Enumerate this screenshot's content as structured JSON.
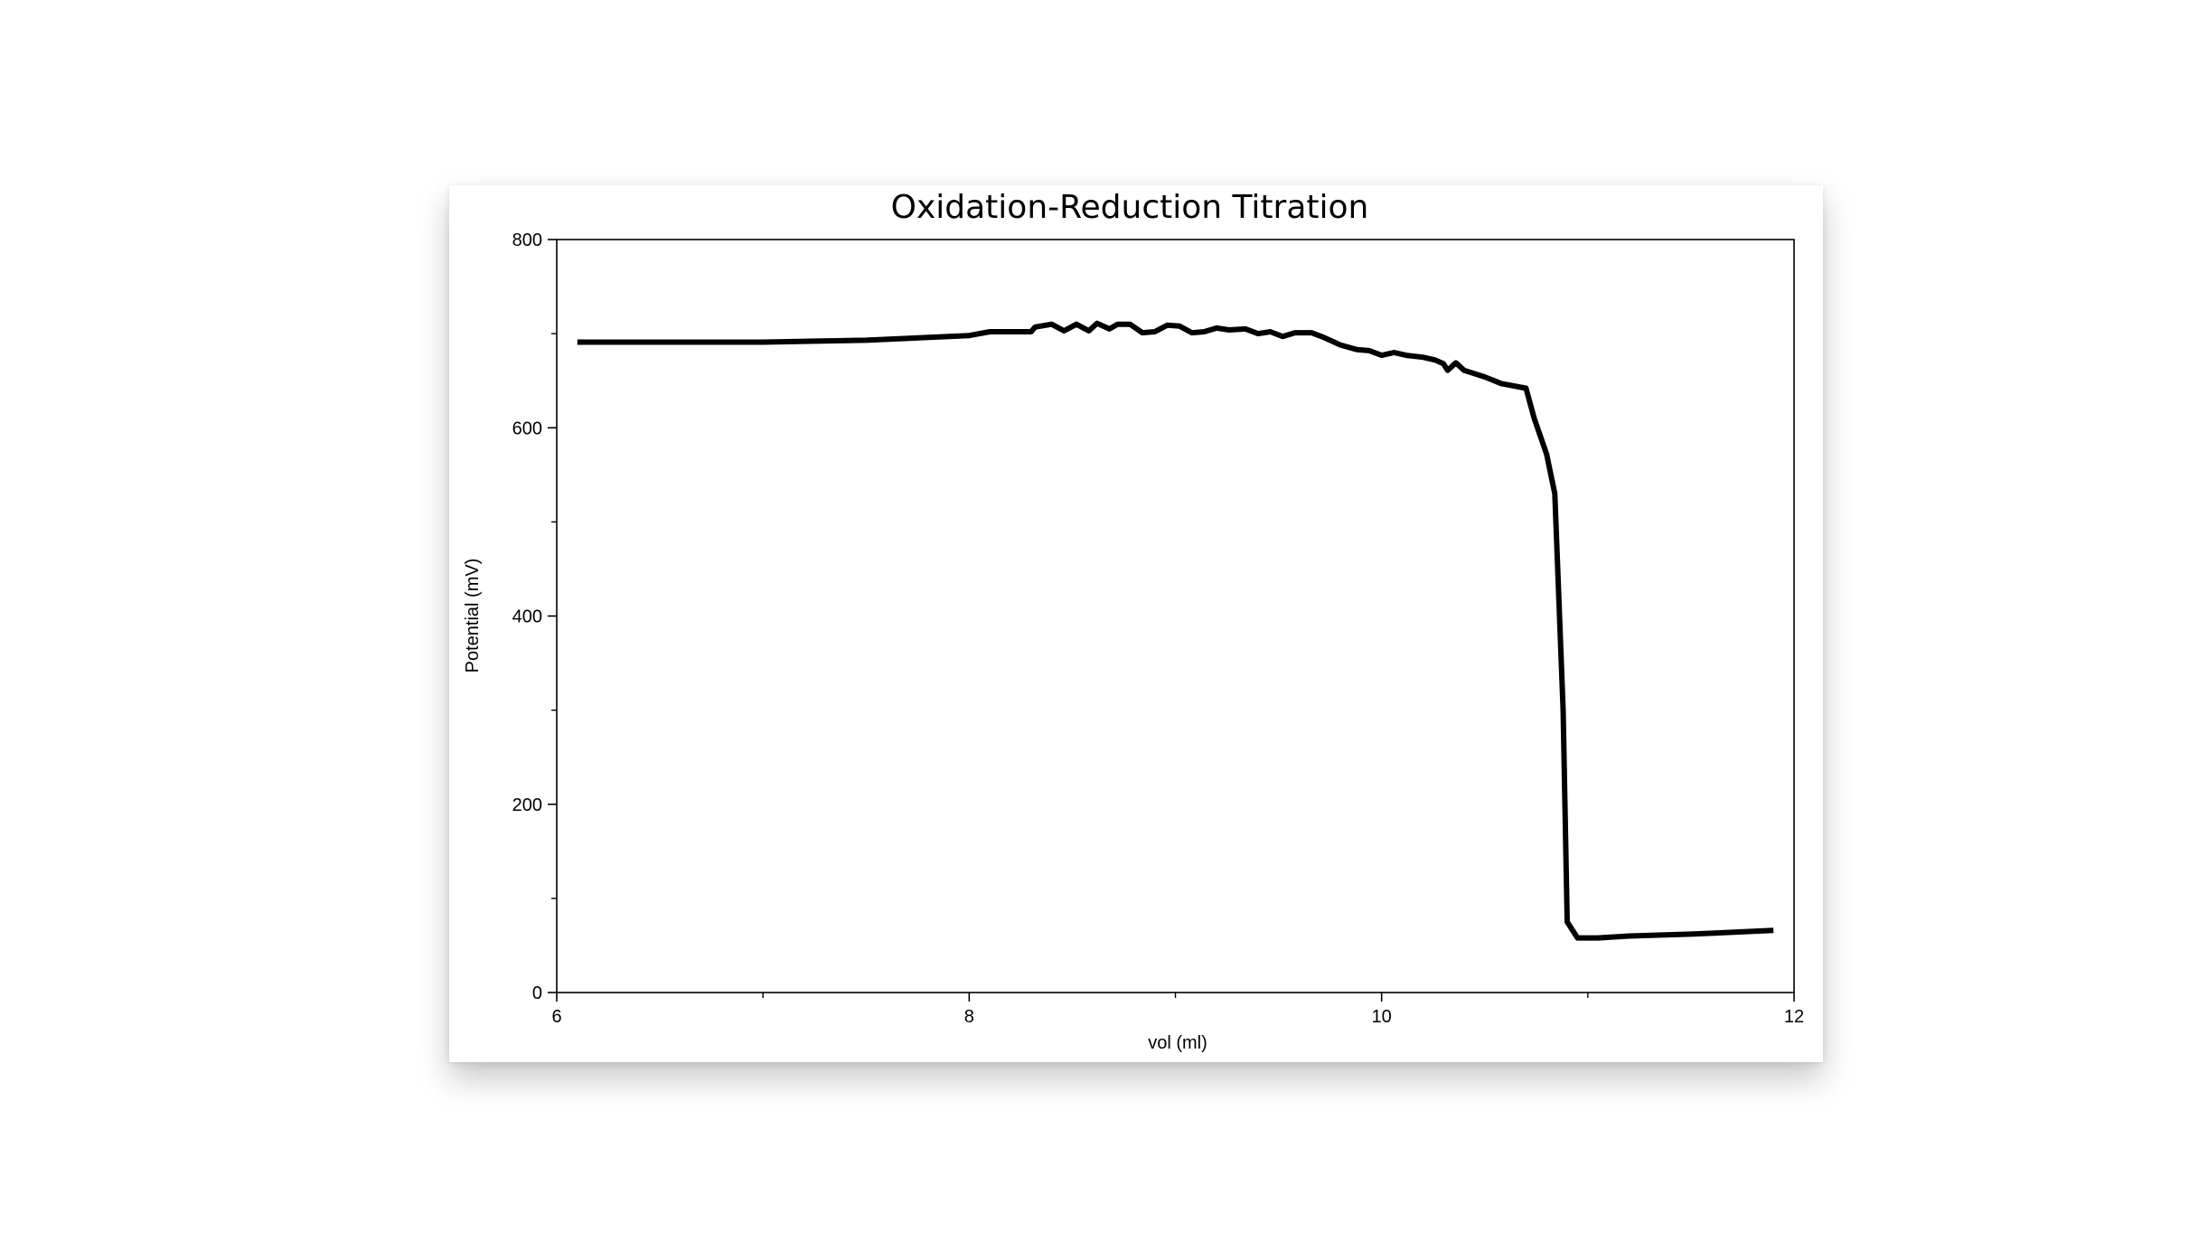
{
  "chart_data": {
    "type": "line",
    "title": "Oxidation-Reduction Titration",
    "xlabel": "vol (ml)",
    "ylabel": "Potential (mV)",
    "xlim": [
      6,
      12
    ],
    "ylim": [
      0,
      800
    ],
    "xticks": [
      "6",
      "8",
      "10",
      "12"
    ],
    "yticks": [
      "0",
      "200",
      "400",
      "600",
      "800"
    ],
    "grid": false,
    "series_color": "#000000",
    "series": [
      {
        "points": [
          [
            6.1,
            691
          ],
          [
            6.5,
            691
          ],
          [
            7.0,
            691
          ],
          [
            7.5,
            693
          ],
          [
            8.0,
            698
          ],
          [
            8.1,
            702
          ],
          [
            8.2,
            702
          ],
          [
            8.3,
            702
          ],
          [
            8.32,
            707
          ],
          [
            8.4,
            710
          ],
          [
            8.46,
            703
          ],
          [
            8.52,
            710
          ],
          [
            8.58,
            703
          ],
          [
            8.62,
            711
          ],
          [
            8.68,
            705
          ],
          [
            8.72,
            710
          ],
          [
            8.78,
            710
          ],
          [
            8.84,
            701
          ],
          [
            8.9,
            702
          ],
          [
            8.96,
            709
          ],
          [
            9.02,
            708
          ],
          [
            9.08,
            701
          ],
          [
            9.14,
            702
          ],
          [
            9.2,
            706
          ],
          [
            9.26,
            704
          ],
          [
            9.34,
            705
          ],
          [
            9.4,
            700
          ],
          [
            9.46,
            702
          ],
          [
            9.52,
            697
          ],
          [
            9.58,
            701
          ],
          [
            9.66,
            701
          ],
          [
            9.72,
            696
          ],
          [
            9.8,
            688
          ],
          [
            9.88,
            683
          ],
          [
            9.94,
            682
          ],
          [
            10.0,
            677
          ],
          [
            10.06,
            680
          ],
          [
            10.12,
            677
          ],
          [
            10.2,
            675
          ],
          [
            10.26,
            672
          ],
          [
            10.3,
            668
          ],
          [
            10.32,
            661
          ],
          [
            10.36,
            669
          ],
          [
            10.4,
            661
          ],
          [
            10.5,
            654
          ],
          [
            10.58,
            647
          ],
          [
            10.7,
            642
          ],
          [
            10.74,
            610
          ],
          [
            10.8,
            572
          ],
          [
            10.84,
            530
          ],
          [
            10.88,
            300
          ],
          [
            10.9,
            75
          ],
          [
            10.95,
            58
          ],
          [
            11.05,
            58
          ],
          [
            11.2,
            60
          ],
          [
            11.5,
            62
          ],
          [
            11.9,
            66
          ]
        ]
      }
    ]
  }
}
